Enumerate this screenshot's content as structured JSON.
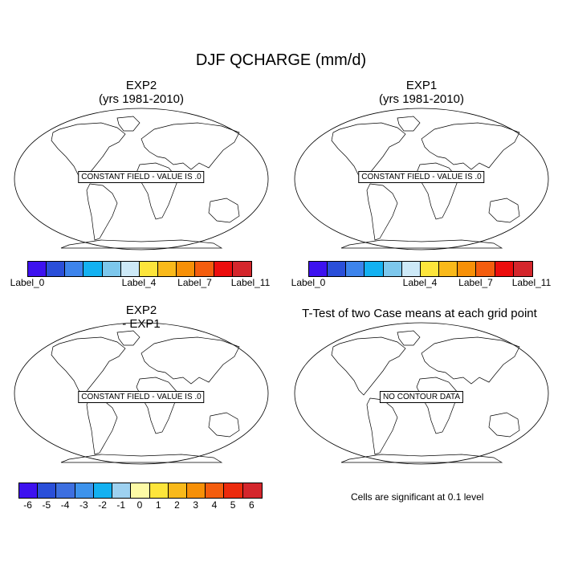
{
  "title": "DJF QCHARGE (mm/d)",
  "panels": {
    "exp2": {
      "title_line1": "EXP2",
      "title_line2": "(yrs 1981-2010)",
      "label": "CONSTANT FIELD - VALUE IS .0"
    },
    "exp1": {
      "title_line1": "EXP1",
      "title_line2": "(yrs 1981-2010)",
      "label": "CONSTANT FIELD - VALUE IS .0"
    },
    "diff": {
      "title_line1": "EXP2",
      "title_line2": "- EXP1",
      "label": "CONSTANT FIELD - VALUE IS .0"
    },
    "ttest": {
      "title": "T-Test of two Case means at each grid point",
      "label": "NO CONTOUR DATA",
      "note": "Cells are significant at 0.1 level"
    }
  },
  "colorbar_top": {
    "colors": [
      "#3d12ef",
      "#2a4fd9",
      "#3d84ec",
      "#13b1f1",
      "#7dc7ec",
      "#cde9f7",
      "#fde53b",
      "#f9b91a",
      "#f79007",
      "#f45d0e",
      "#ec0d0d",
      "#d4262c"
    ],
    "labels": [
      "Label_0",
      "Label_4",
      "Label_7",
      "Label_11"
    ]
  },
  "colorbar_bottom": {
    "colors": [
      "#3d12ef",
      "#2a4fd9",
      "#3d6fe0",
      "#3d93ec",
      "#13b1f1",
      "#9ed1f0",
      "#fdfaa6",
      "#fde53b",
      "#f9b91a",
      "#f79007",
      "#f45d0e",
      "#ec2b0d",
      "#d4262c"
    ],
    "labels": [
      "-6",
      "-5",
      "-4",
      "-3",
      "-2",
      "-1",
      "0",
      "1",
      "2",
      "3",
      "4",
      "5",
      "6"
    ]
  }
}
